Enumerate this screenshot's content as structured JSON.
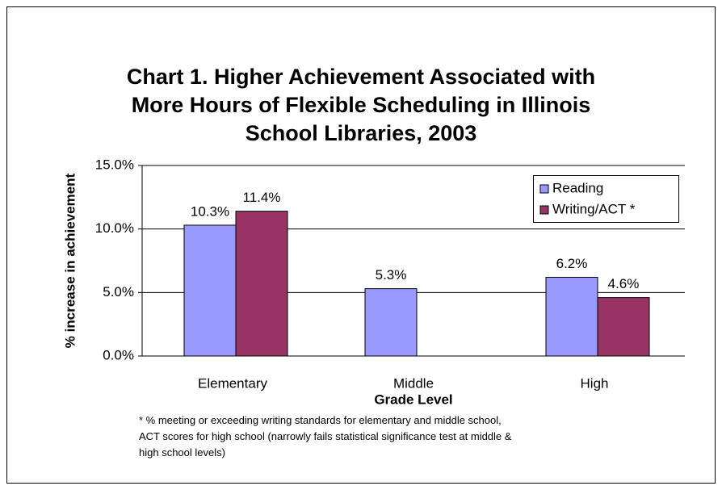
{
  "chart_data": {
    "type": "bar",
    "title": [
      "Chart 1. Higher Achievement Associated with",
      "More Hours of Flexible Scheduling in Illinois",
      "School Libraries, 2003"
    ],
    "x_label": "Grade Level",
    "y_label": "% increase in achievement",
    "categories": [
      "Elementary",
      "Middle",
      "High"
    ],
    "series": [
      {
        "name": "Reading",
        "color": "#9999ff",
        "values": [
          10.3,
          5.3,
          6.2
        ],
        "value_labels": [
          "10.3%",
          "5.3%",
          "6.2%"
        ]
      },
      {
        "name": "Writing/ACT *",
        "color": "#993366",
        "values": [
          11.4,
          null,
          4.6
        ],
        "value_labels": [
          "11.4%",
          null,
          "4.6%"
        ]
      }
    ],
    "ylim": [
      0,
      15
    ],
    "yticks": [
      {
        "value": 0,
        "label": "0.0%"
      },
      {
        "value": 5,
        "label": "5.0%"
      },
      {
        "value": 10,
        "label": "10.0%"
      },
      {
        "value": 15,
        "label": "15.0%"
      }
    ],
    "grid": true,
    "legend": "upper right",
    "footnote": [
      "* % meeting or exceeding writing standards for elementary and middle school,",
      "ACT scores for high school (narrowly fails statistical significance test at middle &",
      "high school levels)"
    ]
  }
}
